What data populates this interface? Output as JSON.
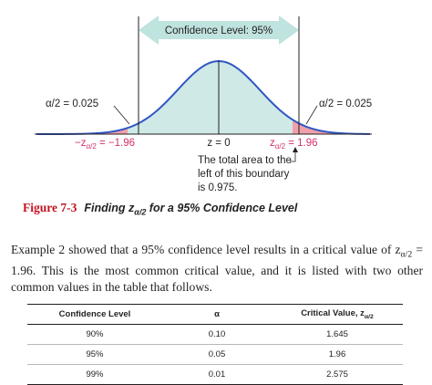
{
  "figure": {
    "confidence_banner": "Confidence Level: 95%",
    "alpha_left": "α/2 = 0.025",
    "alpha_right": "α/2 = 0.025",
    "z_left": "−zα/2 = −1.96",
    "z_center": "z = 0",
    "z_right": "zα/2 = 1.96",
    "annotation_lines": [
      "The total area to the",
      "left of this boundary",
      "is 0.975."
    ],
    "caption_number": "Figure 7-3",
    "caption_title": "Finding zα/2 for a 95% Confidence Level",
    "colors": {
      "center_fill": "#cfe9e6",
      "tail_fill": "#f0a0ab",
      "accent_red": "#c1121f",
      "pink_text": "#d4306e",
      "arrow_teal": "#bfe3df"
    }
  },
  "body": {
    "paragraph": "Example 2 showed that a 95% confidence level results in a critical value of zα/2 = 1.96. This is the most common critical value, and it is listed with two other common values in the table that follows."
  },
  "table": {
    "headers": [
      "Confidence Level",
      "α",
      "Critical Value, zα/2"
    ],
    "rows": [
      [
        "90%",
        "0.10",
        "1.645"
      ],
      [
        "95%",
        "0.05",
        "1.96"
      ],
      [
        "99%",
        "0.01",
        "2.575"
      ]
    ]
  }
}
